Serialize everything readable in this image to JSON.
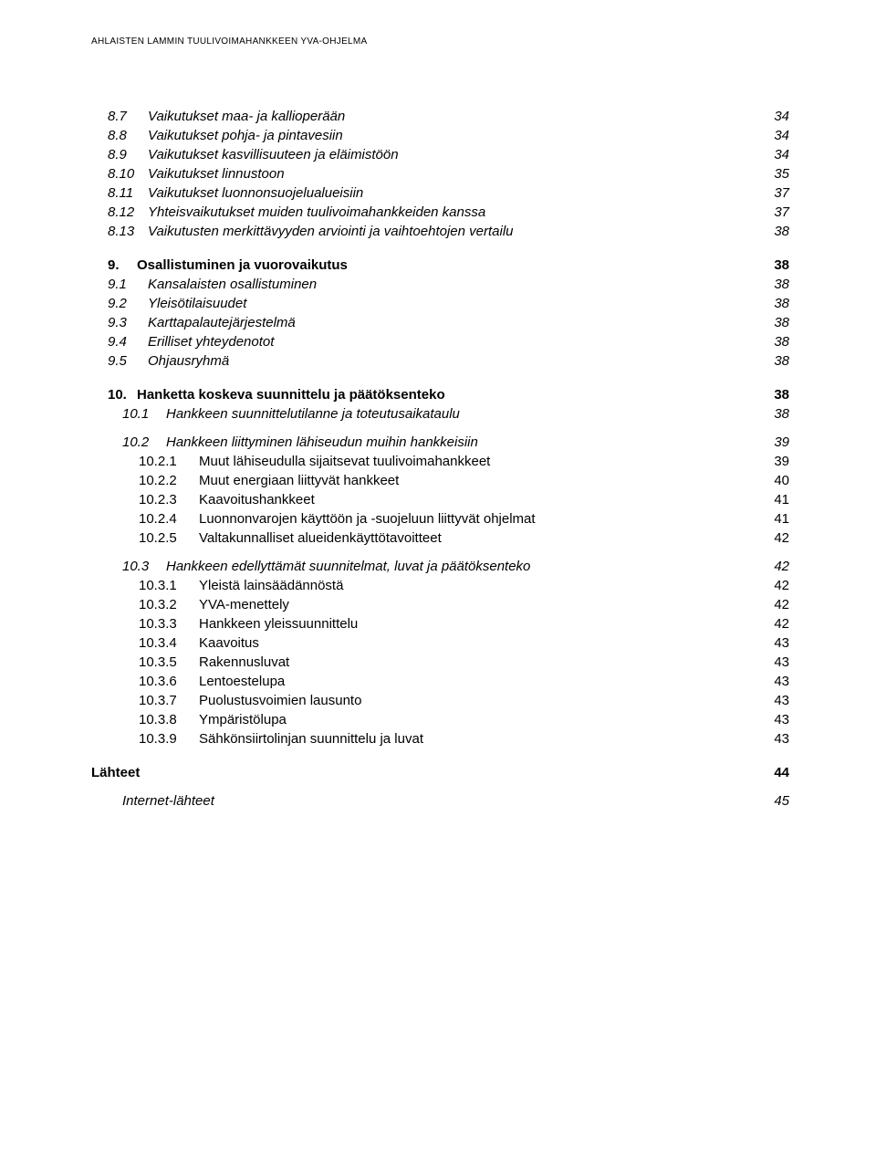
{
  "header": "AHLAISTEN LAMMIN TUULIVOIMAHANKKEEN YVA-OHJELMA",
  "toc": [
    {
      "cls": "level1 italic",
      "num": "8.7",
      "label": "Vaikutukset maa- ja kallioperään",
      "page": "34"
    },
    {
      "cls": "level1 italic",
      "num": "8.8",
      "label": "Vaikutukset pohja- ja pintavesiin",
      "page": "34"
    },
    {
      "cls": "level1 italic",
      "num": "8.9",
      "label": "Vaikutukset kasvillisuuteen ja eläimistöön",
      "page": "34"
    },
    {
      "cls": "level1 italic",
      "num": "8.10",
      "label": "Vaikutukset linnustoon",
      "page": "35"
    },
    {
      "cls": "level1 italic",
      "num": "8.11",
      "label": "Vaikutukset luonnonsuojelualueisiin",
      "page": "37"
    },
    {
      "cls": "level1 italic",
      "num": "8.12",
      "label": "Yhteisvaikutukset muiden tuulivoimahankkeiden kanssa",
      "page": "37"
    },
    {
      "cls": "level1 italic",
      "num": "8.13",
      "label": "Vaikutusten merkittävyyden arviointi ja vaihtoehtojen vertailu",
      "page": "38"
    },
    {
      "gap": "md"
    },
    {
      "cls": "level1bold bold",
      "num": "9.",
      "label": "Osallistuminen ja vuorovaikutus",
      "page": "38"
    },
    {
      "cls": "level1 italic",
      "num": "9.1",
      "label": "Kansalaisten osallistuminen",
      "page": "38"
    },
    {
      "cls": "level1 italic",
      "num": "9.2",
      "label": "Yleisötilaisuudet",
      "page": "38"
    },
    {
      "cls": "level1 italic",
      "num": "9.3",
      "label": "Karttapalautejärjestelmä",
      "page": "38"
    },
    {
      "cls": "level1 italic",
      "num": "9.4",
      "label": "Erilliset yhteydenotot",
      "page": "38"
    },
    {
      "cls": "level1 italic",
      "num": "9.5",
      "label": "Ohjausryhmä",
      "page": "38"
    },
    {
      "gap": "md"
    },
    {
      "cls": "level1bold bold",
      "num": "10.",
      "label": "Hanketta koskeva suunnittelu ja päätöksenteko",
      "page": "38"
    },
    {
      "cls": "level2 italic",
      "num": "10.1",
      "label": "Hankkeen suunnittelutilanne ja toteutusaikataulu",
      "page": "38"
    },
    {
      "gap": "sm"
    },
    {
      "cls": "level2 italic",
      "num": "10.2",
      "label": "Hankkeen liittyminen lähiseudun muihin hankkeisiin",
      "page": "39"
    },
    {
      "cls": "level3",
      "num": "10.2.1",
      "label": "Muut lähiseudulla sijaitsevat tuulivoimahankkeet",
      "page": "39"
    },
    {
      "cls": "level3",
      "num": "10.2.2",
      "label": "Muut energiaan liittyvät hankkeet",
      "page": "40"
    },
    {
      "cls": "level3",
      "num": "10.2.3",
      "label": "Kaavoitushankkeet",
      "page": "41"
    },
    {
      "cls": "level3",
      "num": "10.2.4",
      "label": "Luonnonvarojen käyttöön ja -suojeluun liittyvät ohjelmat",
      "page": "41"
    },
    {
      "cls": "level3",
      "num": "10.2.5",
      "label": "Valtakunnalliset alueidenkäyttötavoitteet",
      "page": "42"
    },
    {
      "gap": "sm"
    },
    {
      "cls": "level2 italic",
      "num": "10.3",
      "label": "Hankkeen edellyttämät suunnitelmat, luvat ja päätöksenteko",
      "page": "42"
    },
    {
      "cls": "level3",
      "num": "10.3.1",
      "label": "Yleistä lainsäädännöstä",
      "page": "42"
    },
    {
      "cls": "level3",
      "num": "10.3.2",
      "label": "YVA-menettely",
      "page": "42"
    },
    {
      "cls": "level3",
      "num": "10.3.3",
      "label": "Hankkeen yleissuunnittelu",
      "page": "42"
    },
    {
      "cls": "level3",
      "num": "10.3.4",
      "label": "Kaavoitus",
      "page": "43"
    },
    {
      "cls": "level3",
      "num": "10.3.5",
      "label": "Rakennusluvat",
      "page": "43"
    },
    {
      "cls": "level3",
      "num": "10.3.6",
      "label": "Lentoestelupa",
      "page": "43"
    },
    {
      "cls": "level3",
      "num": "10.3.7",
      "label": "Puolustusvoimien lausunto",
      "page": "43"
    },
    {
      "cls": "level3",
      "num": "10.3.8",
      "label": "Ympäristölupa",
      "page": "43"
    },
    {
      "cls": "level3",
      "num": "10.3.9",
      "label": "Sähkönsiirtolinjan suunnittelu ja luvat",
      "page": "43"
    },
    {
      "gap": "md"
    },
    {
      "cls": "sources bold",
      "num": "",
      "label": "Lähteet",
      "page": "44"
    },
    {
      "gap": "sm"
    },
    {
      "cls": "sources-sub italic",
      "num": "",
      "label": "Internet-lähteet",
      "page": "45"
    }
  ]
}
